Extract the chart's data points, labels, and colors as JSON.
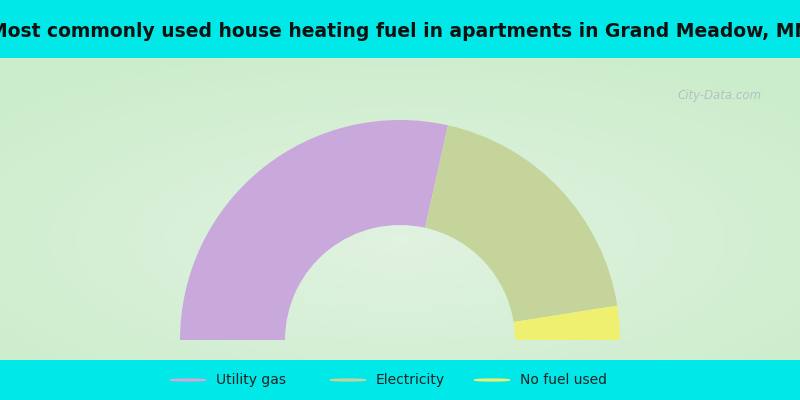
{
  "title": "Most commonly used house heating fuel in apartments in Grand Meadow, MN",
  "title_fontsize": 13.5,
  "background_color": "#00e8e8",
  "slices": [
    {
      "label": "Utility gas",
      "value": 57,
      "color": "#c9a8dc"
    },
    {
      "label": "Electricity",
      "value": 38,
      "color": "#c5d49a"
    },
    {
      "label": "No fuel used",
      "value": 5,
      "color": "#f0f070"
    }
  ],
  "legend_colors": [
    "#d4a8d8",
    "#c8d49a",
    "#f0f070"
  ],
  "legend_labels": [
    "Utility gas",
    "Electricity",
    "No fuel used"
  ],
  "watermark": "City-Data.com"
}
